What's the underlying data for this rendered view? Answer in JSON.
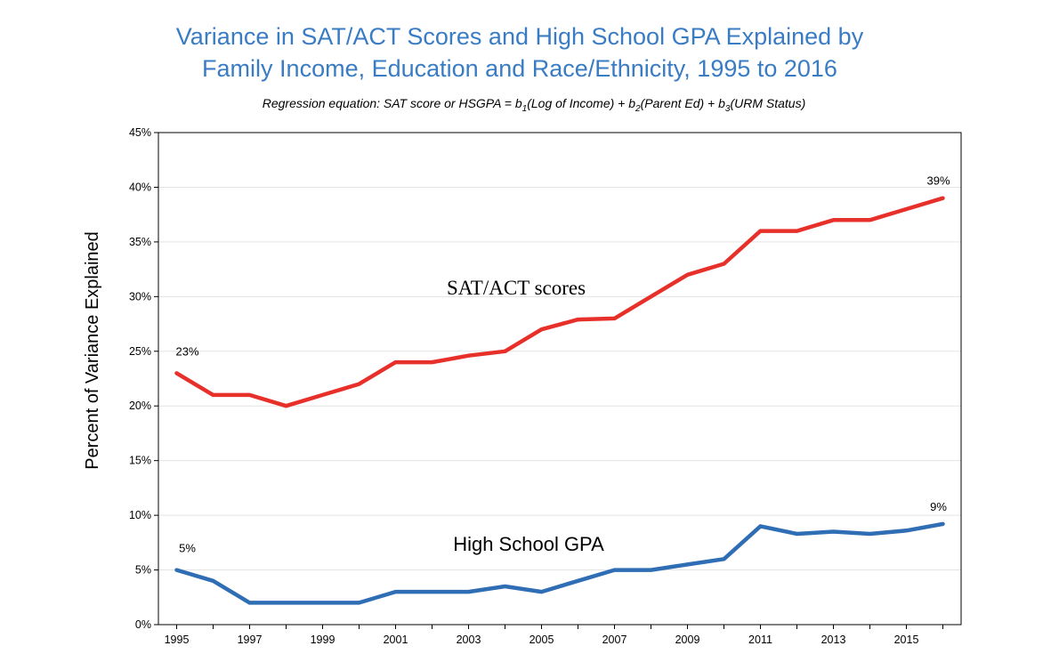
{
  "chart_data": {
    "type": "line",
    "title_line1": "Variance in SAT/ACT Scores and High School GPA Explained by",
    "title_line2": "Family Income, Education and Race/Ethnicity, 1995 to 2016",
    "subtitle": {
      "prefix": "Regression equation:  SAT score or HSGPA = b",
      "sub1": "1",
      "part2": "(Log of Income) + b",
      "sub2": "2",
      "part3": "(Parent Ed) + b",
      "sub3": "3",
      "part4": "(URM Status)"
    },
    "ylabel": "Percent of Variance Explained",
    "xlabel": "",
    "ylim": [
      0,
      45
    ],
    "yticks": [
      0,
      5,
      10,
      15,
      20,
      25,
      30,
      35,
      40,
      45
    ],
    "ytick_labels": [
      "0%",
      "5%",
      "10%",
      "15%",
      "20%",
      "25%",
      "30%",
      "35%",
      "40%",
      "45%"
    ],
    "x": [
      1995,
      1996,
      1997,
      1998,
      1999,
      2000,
      2001,
      2002,
      2003,
      2004,
      2005,
      2006,
      2007,
      2008,
      2009,
      2010,
      2011,
      2012,
      2013,
      2014,
      2015,
      2016
    ],
    "xtick_labels": [
      "1995",
      "1997",
      "1999",
      "2001",
      "2003",
      "2005",
      "2007",
      "2009",
      "2011",
      "2013",
      "2015"
    ],
    "xlim": [
      1994.5,
      2016.5
    ],
    "grid": true,
    "series": [
      {
        "name": "SAT/ACT scores",
        "color": "#e8302a",
        "values": [
          23,
          21,
          21,
          20,
          21,
          22,
          24,
          24,
          24.6,
          25,
          27,
          27.9,
          28,
          30,
          32,
          33,
          36,
          36,
          37,
          37,
          38,
          39
        ],
        "start_label": "23%",
        "end_label": "39%"
      },
      {
        "name": "High School GPA",
        "color": "#2f6db5",
        "values": [
          5,
          4,
          2,
          2,
          2,
          2,
          3,
          3,
          3,
          3.5,
          3,
          4,
          5,
          5,
          5.5,
          6,
          9,
          8.3,
          8.5,
          8.3,
          8.6,
          9.2
        ],
        "start_label": "5%",
        "end_label": "9%"
      }
    ]
  }
}
